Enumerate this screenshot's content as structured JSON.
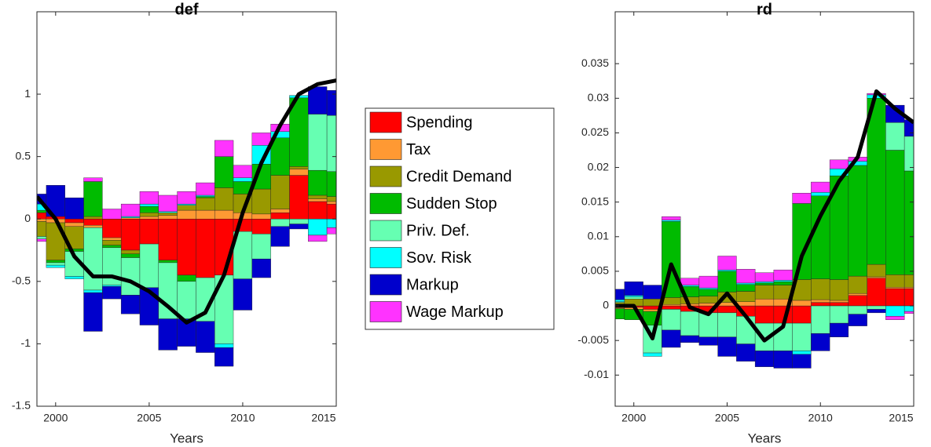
{
  "chart_data": [
    {
      "type": "bar",
      "title": "def",
      "xlabel": "Years",
      "x": [
        1999,
        2000,
        2001,
        2002,
        2003,
        2004,
        2005,
        2006,
        2007,
        2008,
        2009,
        2010,
        2011,
        2012,
        2013,
        2014,
        2015
      ],
      "xlim": [
        1999,
        2015
      ],
      "xticks": [
        2000,
        2005,
        2010,
        2015
      ],
      "ylim": [
        -1.5,
        1.66
      ],
      "yticks": [
        -1.5,
        -1,
        -0.5,
        0,
        0.5,
        1
      ],
      "series": [
        {
          "name": "Spending",
          "color": "#ff0000",
          "values": [
            0.05,
            0.02,
            -0.03,
            -0.05,
            -0.15,
            -0.25,
            -0.2,
            -0.33,
            -0.45,
            -0.47,
            -0.45,
            -0.1,
            -0.12,
            0.05,
            0.35,
            0.14,
            0.12
          ]
        },
        {
          "name": "Tax",
          "color": "#ff9933",
          "values": [
            -0.02,
            -0.03,
            -0.03,
            -0.02,
            -0.02,
            0.01,
            0.02,
            0.03,
            0.07,
            0.07,
            0.07,
            0.05,
            0.04,
            0.03,
            0.05,
            0.02,
            0.02
          ]
        },
        {
          "name": "Credit Demand",
          "color": "#999900",
          "values": [
            -0.12,
            -0.3,
            -0.18,
            0.02,
            -0.04,
            -0.03,
            0.03,
            0.02,
            0.04,
            0.1,
            0.18,
            0.15,
            0.2,
            0.27,
            0.02,
            0.03,
            0.04
          ]
        },
        {
          "name": "Sudden Stop",
          "color": "#00bb00",
          "values": [
            0.02,
            -0.02,
            -0.02,
            0.28,
            -0.02,
            -0.03,
            0.05,
            -0.02,
            -0.05,
            0.01,
            0.25,
            0.1,
            0.2,
            0.3,
            0.55,
            0.2,
            0.2
          ]
        },
        {
          "name": "Priv. Def.",
          "color": "#66ffb2",
          "values": [
            -0.02,
            -0.02,
            -0.2,
            -0.5,
            -0.3,
            -0.3,
            -0.35,
            -0.45,
            -0.3,
            -0.35,
            -0.55,
            -0.38,
            -0.2,
            -0.06,
            -0.04,
            0.45,
            0.45
          ]
        },
        {
          "name": "Sov. Risk",
          "color": "#00ffff",
          "values": [
            0.05,
            -0.02,
            -0.02,
            -0.02,
            -0.01,
            0.01,
            0.02,
            0.01,
            0.01,
            0.01,
            -0.03,
            0.03,
            0.15,
            0.05,
            0.02,
            -0.13,
            -0.07
          ]
        },
        {
          "name": "Markup",
          "color": "#0000cc",
          "values": [
            0.08,
            0.25,
            0.17,
            -0.31,
            -0.1,
            -0.15,
            -0.3,
            -0.25,
            -0.22,
            -0.25,
            -0.15,
            -0.25,
            -0.15,
            -0.16,
            -0.04,
            0.22,
            0.2
          ]
        },
        {
          "name": "Wage Markup",
          "color": "#ff33ff",
          "values": [
            -0.02,
            0,
            0,
            0.03,
            0.08,
            0.1,
            0.1,
            0.13,
            0.1,
            0.1,
            0.13,
            0.1,
            0.1,
            0.06,
            0,
            -0.05,
            -0.05
          ]
        }
      ],
      "line": {
        "color": "#000000",
        "values": [
          0.18,
          0,
          -0.3,
          -0.46,
          -0.46,
          -0.5,
          -0.58,
          -0.7,
          -0.83,
          -0.75,
          -0.45,
          0.05,
          0.45,
          0.75,
          1.0,
          1.08,
          1.11
        ]
      }
    },
    {
      "type": "bar",
      "title": "rd",
      "xlabel": "Years",
      "x": [
        1999,
        2000,
        2001,
        2002,
        2003,
        2004,
        2005,
        2006,
        2007,
        2008,
        2009,
        2010,
        2011,
        2012,
        2013,
        2014,
        2015
      ],
      "xlim": [
        1999,
        2015
      ],
      "xticks": [
        2000,
        2005,
        2010,
        2015
      ],
      "ylim": [
        -0.0145,
        0.0425
      ],
      "yticks": [
        -0.01,
        -0.005,
        0,
        0.005,
        0.01,
        0.015,
        0.02,
        0.025,
        0.03,
        0.035
      ],
      "series": [
        {
          "color": "#ff0000",
          "values": [
            -0.0002,
            -0.0002,
            -0.0005,
            -0.0005,
            -0.0008,
            -0.001,
            -0.001,
            -0.0015,
            -0.0025,
            -0.0025,
            -0.0025,
            0.0005,
            0.0005,
            0.0015,
            0.004,
            0.0025,
            0.0025
          ]
        },
        {
          "color": "#ff9933",
          "values": [
            -0.0002,
            -0.0003,
            -0.0003,
            0.0002,
            0.0003,
            0.0004,
            0.0005,
            0.0006,
            0.001,
            0.001,
            0.0008,
            0.0004,
            0.0003,
            0.0003,
            0.0002,
            0.0002,
            0.0002
          ]
        },
        {
          "color": "#999900",
          "values": [
            0.0005,
            0.001,
            0.001,
            0.001,
            0.001,
            0.001,
            0.0015,
            0.0015,
            0.002,
            0.002,
            0.003,
            0.003,
            0.003,
            0.0025,
            0.0018,
            0.0018,
            0.0018
          ]
        },
        {
          "color": "#00bb00",
          "values": [
            -0.0015,
            -0.0015,
            -0.002,
            0.011,
            0.0015,
            0.001,
            0.003,
            0.001,
            0.0003,
            0.0005,
            0.011,
            0.012,
            0.015,
            0.016,
            0.024,
            0.018,
            0.015
          ]
        },
        {
          "color": "#66ffb2",
          "values": [
            0.0001,
            0.0003,
            -0.004,
            -0.003,
            -0.0035,
            -0.0035,
            -0.0035,
            -0.004,
            -0.004,
            -0.004,
            -0.004,
            -0.004,
            -0.0025,
            -0.0012,
            -0.0005,
            0.004,
            0.005
          ]
        },
        {
          "color": "#00ffff",
          "values": [
            0.0003,
            0.0002,
            -0.0005,
            0.0002,
            0.0002,
            0.0002,
            0.0002,
            0.0002,
            0.0002,
            0.0002,
            -0.0005,
            0.0005,
            0.001,
            0.0006,
            0.0005,
            -0.0015,
            -0.0008
          ]
        },
        {
          "color": "#0000cc",
          "values": [
            0.0015,
            0.002,
            0.002,
            -0.0025,
            -0.001,
            -0.0012,
            -0.0028,
            -0.0025,
            -0.0023,
            -0.0025,
            -0.002,
            -0.0025,
            -0.002,
            -0.0017,
            -0.0005,
            0.0025,
            0.0024
          ]
        },
        {
          "color": "#ff33ff",
          "values": [
            0,
            0,
            0,
            0.0005,
            0.001,
            0.0017,
            0.002,
            0.002,
            0.0013,
            0.0015,
            0.0015,
            0.0015,
            0.0013,
            0.0006,
            0.0002,
            -0.0005,
            -0.0003
          ]
        }
      ],
      "line": {
        "color": "#000000",
        "values": [
          0,
          0,
          -0.0047,
          0.006,
          -0.0002,
          -0.0012,
          0.0018,
          -0.0015,
          -0.005,
          -0.003,
          0.0072,
          0.013,
          0.018,
          0.0215,
          0.031,
          0.0285,
          0.0265
        ]
      }
    }
  ]
}
